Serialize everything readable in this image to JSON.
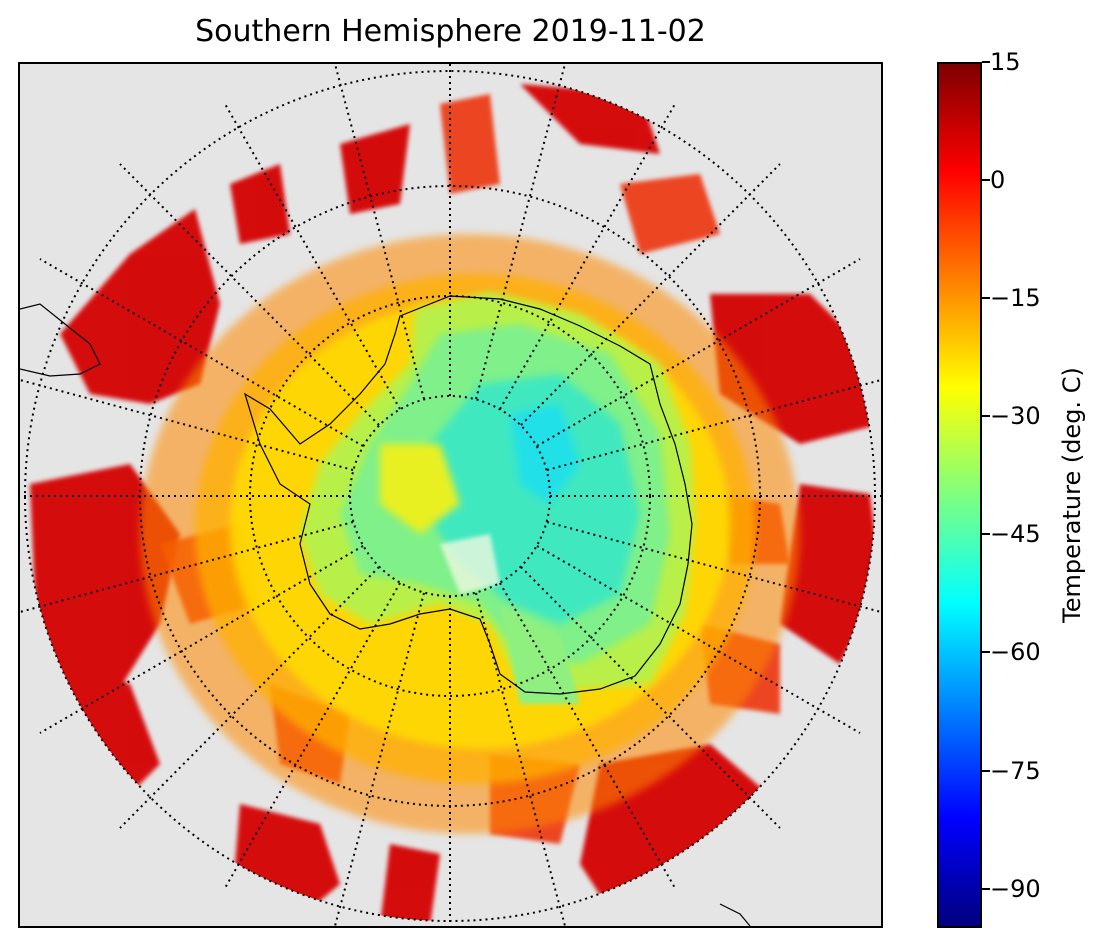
{
  "title": "Southern Hemisphere 2019-11-02",
  "colorbar": {
    "label": "Temperature (deg. C)",
    "min": -95,
    "max": 15,
    "colormap": "jet",
    "ticks": [
      {
        "value": 15,
        "label": "15"
      },
      {
        "value": 0,
        "label": "0"
      },
      {
        "value": -15,
        "label": "−15"
      },
      {
        "value": -30,
        "label": "−30"
      },
      {
        "value": -45,
        "label": "−45"
      },
      {
        "value": -60,
        "label": "−60"
      },
      {
        "value": -75,
        "label": "−75"
      },
      {
        "value": -90,
        "label": "−90"
      }
    ]
  },
  "map": {
    "projection": "south polar stereographic",
    "background_color": "#e5e5e5",
    "graticule": "dotted",
    "coastline_color": "#000000"
  }
}
